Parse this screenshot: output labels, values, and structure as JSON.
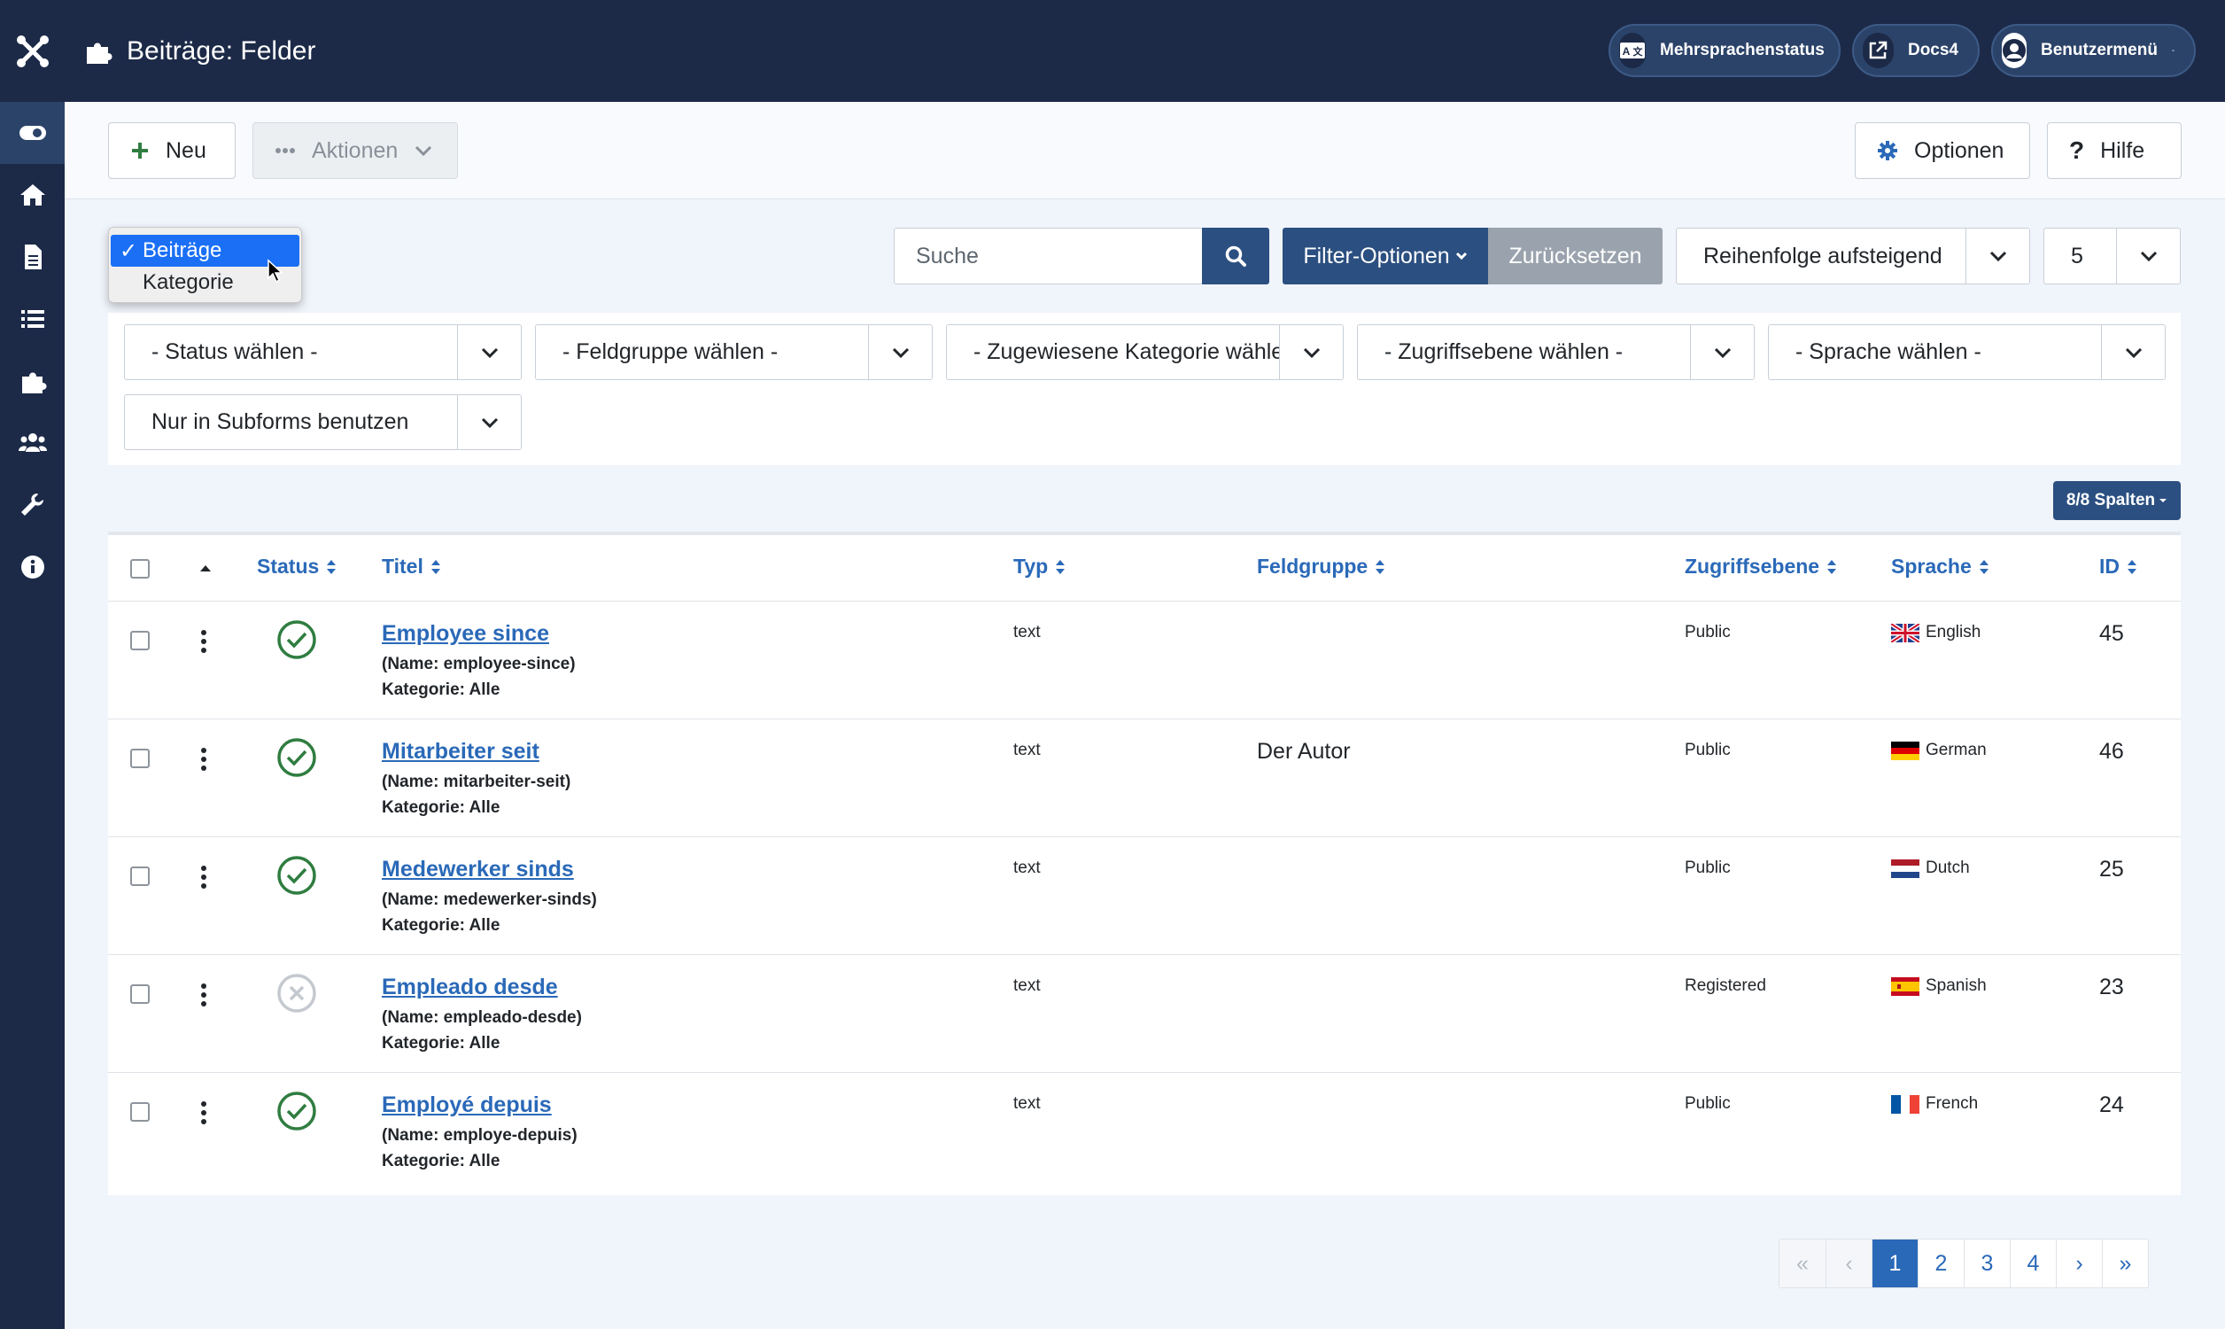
{
  "header": {
    "title": "Beiträge: Felder",
    "multilang_label": "Mehrsprachenstatus",
    "docs_label": "Docs4",
    "user_menu_label": "Benutzermenü"
  },
  "toolbar": {
    "new_label": "Neu",
    "actions_label": "Aktionen",
    "options_label": "Optionen",
    "help_label": "Hilfe"
  },
  "context_dropdown": {
    "options": [
      "Beiträge",
      "Kategorie"
    ],
    "selected": "Beiträge",
    "check_mark": "✓"
  },
  "search": {
    "placeholder": "Suche",
    "filter_options_label": "Filter-Optionen",
    "reset_label": "Zurücksetzen",
    "ordering": "Reihenfolge aufsteigend",
    "limit": "5"
  },
  "filters": {
    "status": "- Status wählen -",
    "field_group": "- Feldgruppe wählen -",
    "category": "- Zugewiesene Kategorie wählen -",
    "access": "- Zugriffsebene wählen -",
    "language": "- Sprache wählen -",
    "subforms": "Nur in Subforms benutzen"
  },
  "columns_button": "8/8 Spalten",
  "table": {
    "headers": {
      "status": "Status",
      "title": "Titel",
      "type": "Typ",
      "group": "Feldgruppe",
      "access": "Zugriffsebene",
      "language": "Sprache",
      "id": "ID"
    },
    "rows": [
      {
        "title": "Employee since",
        "name": "(Name: employee-since)",
        "category": "Kategorie: Alle",
        "type": "text",
        "group": "",
        "access": "Public",
        "language": "English",
        "flag": "uk",
        "id": "45",
        "published": true
      },
      {
        "title": "Mitarbeiter seit",
        "name": "(Name: mitarbeiter-seit)",
        "category": "Kategorie: Alle",
        "type": "text",
        "group": "Der Autor",
        "access": "Public",
        "language": "German",
        "flag": "de",
        "id": "46",
        "published": true
      },
      {
        "title": "Medewerker sinds",
        "name": "(Name: medewerker-sinds)",
        "category": "Kategorie: Alle",
        "type": "text",
        "group": "",
        "access": "Public",
        "language": "Dutch",
        "flag": "nl",
        "id": "25",
        "published": true
      },
      {
        "title": "Empleado desde",
        "name": "(Name: empleado-desde)",
        "category": "Kategorie: Alle",
        "type": "text",
        "group": "",
        "access": "Registered",
        "language": "Spanish",
        "flag": "es",
        "id": "23",
        "published": false
      },
      {
        "title": "Employé depuis",
        "name": "(Name: employe-depuis)",
        "category": "Kategorie: Alle",
        "type": "text",
        "group": "",
        "access": "Public",
        "language": "French",
        "flag": "fr",
        "id": "24",
        "published": true
      }
    ]
  },
  "pagination": {
    "pages": [
      "1",
      "2",
      "3",
      "4"
    ],
    "current": "1"
  },
  "colors": {
    "sidebar": "#1c2a48",
    "accent": "#2a69b8",
    "success": "#2f7d40",
    "dropdown_selected": "#1a6ff5"
  }
}
